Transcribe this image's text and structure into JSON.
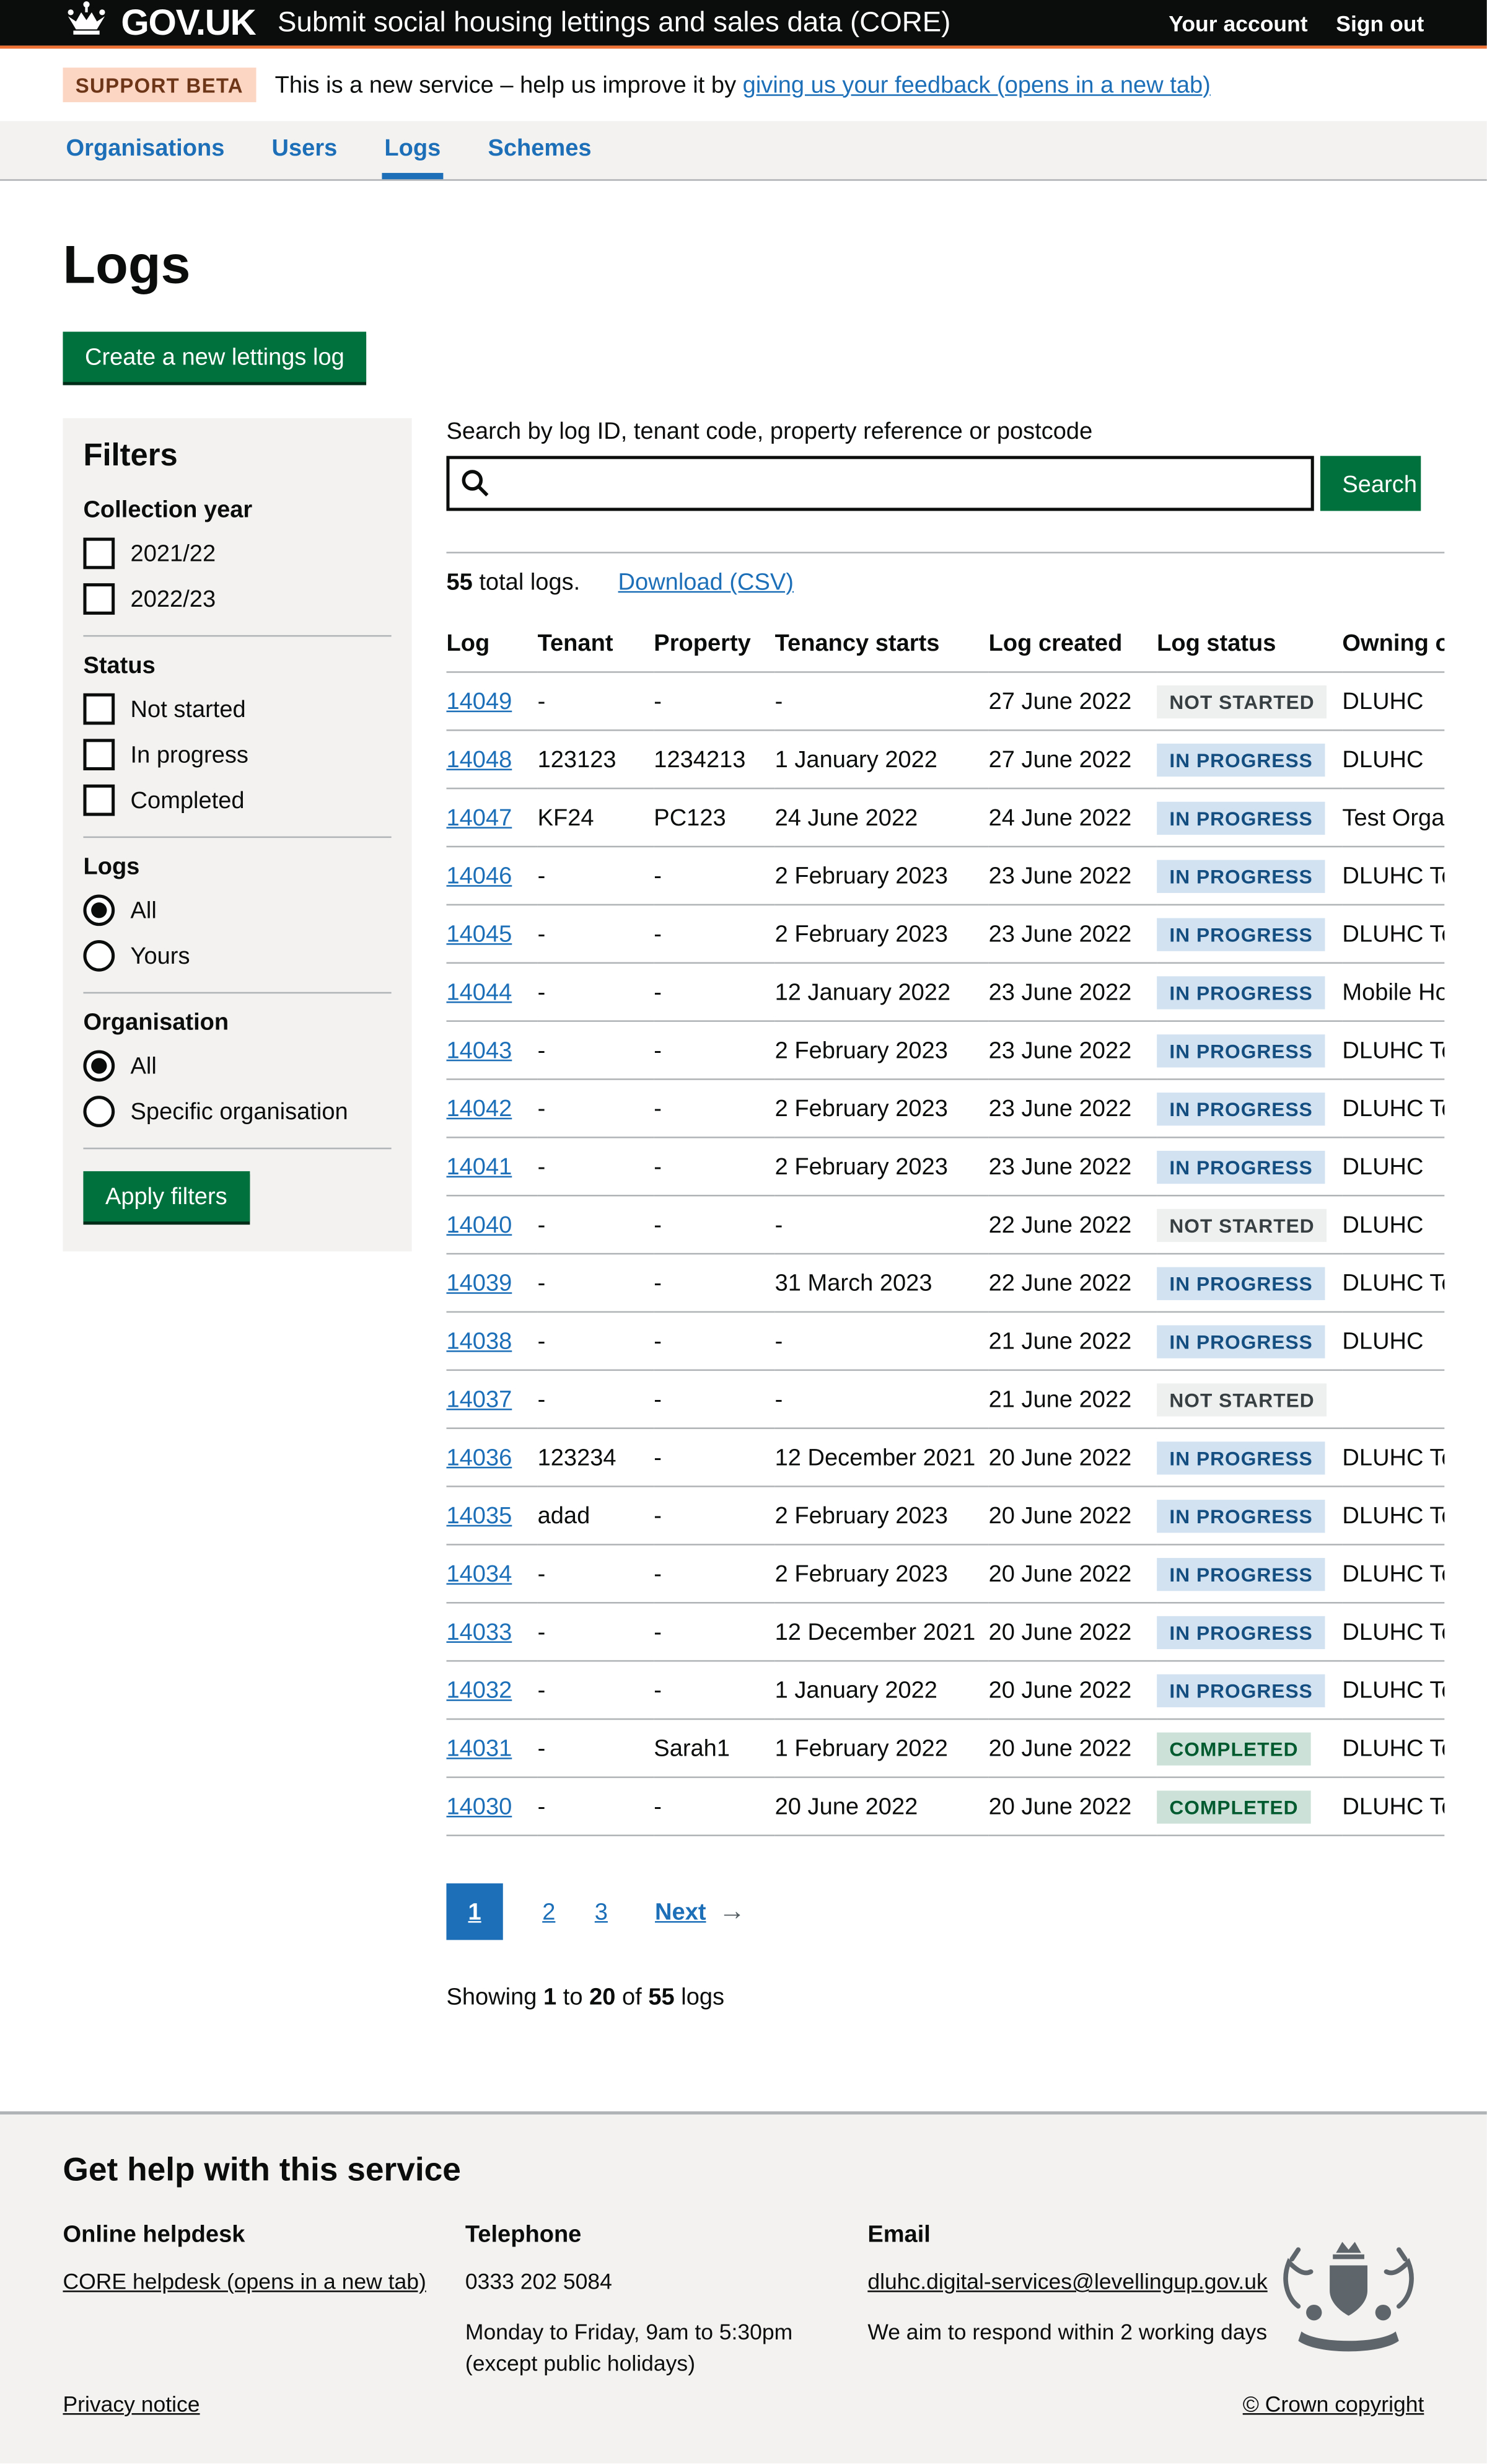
{
  "header": {
    "logo": "GOV.UK",
    "service_name": "Submit social housing lettings and sales data (CORE)",
    "account_link": "Your account",
    "signout_link": "Sign out"
  },
  "phase_banner": {
    "tag": "SUPPORT BETA",
    "message": "This is a new service – help us improve it by ",
    "feedback_link": "giving us your feedback (opens in a new tab)"
  },
  "nav": {
    "organisations": "Organisations",
    "users": "Users",
    "logs": "Logs",
    "schemes": "Schemes"
  },
  "page": {
    "title": "Logs",
    "create_button": "Create a new lettings log"
  },
  "filters": {
    "title": "Filters",
    "collection_year": {
      "label": "Collection year",
      "options": [
        {
          "label": "2021/22",
          "checked": false
        },
        {
          "label": "2022/23",
          "checked": false
        }
      ]
    },
    "status": {
      "label": "Status",
      "options": [
        {
          "label": "Not started",
          "checked": false
        },
        {
          "label": "In progress",
          "checked": false
        },
        {
          "label": "Completed",
          "checked": false
        }
      ]
    },
    "logs": {
      "label": "Logs",
      "options": [
        {
          "label": "All",
          "selected": true
        },
        {
          "label": "Yours",
          "selected": false
        }
      ]
    },
    "organisation": {
      "label": "Organisation",
      "options": [
        {
          "label": "All",
          "selected": true
        },
        {
          "label": "Specific organisation",
          "selected": false
        }
      ]
    },
    "apply_button": "Apply filters"
  },
  "search": {
    "label": "Search by log ID, tenant code, property reference or postcode",
    "value": "",
    "button": "Search"
  },
  "results": {
    "count": "55",
    "count_suffix": " total logs.",
    "download_link": "Download (CSV)"
  },
  "table": {
    "headers": [
      "Log",
      "Tenant",
      "Property",
      "Tenancy starts",
      "Log created",
      "Log status",
      "Owning organisation"
    ],
    "rows": [
      {
        "log": "14049",
        "tenant": "-",
        "property": "-",
        "tenancy": "-",
        "created": "27 June 2022",
        "status": "NOT STARTED",
        "status_type": "not-started",
        "owning": "DLUHC"
      },
      {
        "log": "14048",
        "tenant": "123123",
        "property": "1234213",
        "tenancy": "1 January 2022",
        "created": "27 June 2022",
        "status": "IN PROGRESS",
        "status_type": "in-progress",
        "owning": "DLUHC"
      },
      {
        "log": "14047",
        "tenant": "KF24",
        "property": "PC123",
        "tenancy": "24 June 2022",
        "created": "24 June 2022",
        "status": "IN PROGRESS",
        "status_type": "in-progress",
        "owning": "Test Organ"
      },
      {
        "log": "14046",
        "tenant": "-",
        "property": "-",
        "tenancy": "2 February 2023",
        "created": "23 June 2022",
        "status": "IN PROGRESS",
        "status_type": "in-progress",
        "owning": "DLUHC Tes"
      },
      {
        "log": "14045",
        "tenant": "-",
        "property": "-",
        "tenancy": "2 February 2023",
        "created": "23 June 2022",
        "status": "IN PROGRESS",
        "status_type": "in-progress",
        "owning": "DLUHC Tes"
      },
      {
        "log": "14044",
        "tenant": "-",
        "property": "-",
        "tenancy": "12 January 2022",
        "created": "23 June 2022",
        "status": "IN PROGRESS",
        "status_type": "in-progress",
        "owning": "Mobile Hou"
      },
      {
        "log": "14043",
        "tenant": "-",
        "property": "-",
        "tenancy": "2 February 2023",
        "created": "23 June 2022",
        "status": "IN PROGRESS",
        "status_type": "in-progress",
        "owning": "DLUHC Tes"
      },
      {
        "log": "14042",
        "tenant": "-",
        "property": "-",
        "tenancy": "2 February 2023",
        "created": "23 June 2022",
        "status": "IN PROGRESS",
        "status_type": "in-progress",
        "owning": "DLUHC Tes"
      },
      {
        "log": "14041",
        "tenant": "-",
        "property": "-",
        "tenancy": "2 February 2023",
        "created": "23 June 2022",
        "status": "IN PROGRESS",
        "status_type": "in-progress",
        "owning": "DLUHC"
      },
      {
        "log": "14040",
        "tenant": "-",
        "property": "-",
        "tenancy": "-",
        "created": "22 June 2022",
        "status": "NOT STARTED",
        "status_type": "not-started",
        "owning": "DLUHC"
      },
      {
        "log": "14039",
        "tenant": "-",
        "property": "-",
        "tenancy": "31 March 2023",
        "created": "22 June 2022",
        "status": "IN PROGRESS",
        "status_type": "in-progress",
        "owning": "DLUHC Tes"
      },
      {
        "log": "14038",
        "tenant": "-",
        "property": "-",
        "tenancy": "-",
        "created": "21 June 2022",
        "status": "IN PROGRESS",
        "status_type": "in-progress",
        "owning": "DLUHC"
      },
      {
        "log": "14037",
        "tenant": "-",
        "property": "-",
        "tenancy": "-",
        "created": "21 June 2022",
        "status": "NOT STARTED",
        "status_type": "not-started",
        "owning": ""
      },
      {
        "log": "14036",
        "tenant": "123234",
        "property": "-",
        "tenancy": "12 December 2021",
        "created": "20 June 2022",
        "status": "IN PROGRESS",
        "status_type": "in-progress",
        "owning": "DLUHC Tes"
      },
      {
        "log": "14035",
        "tenant": "adad",
        "property": "-",
        "tenancy": "2 February 2023",
        "created": "20 June 2022",
        "status": "IN PROGRESS",
        "status_type": "in-progress",
        "owning": "DLUHC Tes"
      },
      {
        "log": "14034",
        "tenant": "-",
        "property": "-",
        "tenancy": "2 February 2023",
        "created": "20 June 2022",
        "status": "IN PROGRESS",
        "status_type": "in-progress",
        "owning": "DLUHC Tes"
      },
      {
        "log": "14033",
        "tenant": "-",
        "property": "-",
        "tenancy": "12 December 2021",
        "created": "20 June 2022",
        "status": "IN PROGRESS",
        "status_type": "in-progress",
        "owning": "DLUHC Tes"
      },
      {
        "log": "14032",
        "tenant": "-",
        "property": "-",
        "tenancy": "1 January 2022",
        "created": "20 June 2022",
        "status": "IN PROGRESS",
        "status_type": "in-progress",
        "owning": "DLUHC Tes"
      },
      {
        "log": "14031",
        "tenant": "-",
        "property": "Sarah1",
        "tenancy": "1 February 2022",
        "created": "20 June 2022",
        "status": "COMPLETED",
        "status_type": "completed",
        "owning": "DLUHC Tes"
      },
      {
        "log": "14030",
        "tenant": "-",
        "property": "-",
        "tenancy": "20 June 2022",
        "created": "20 June 2022",
        "status": "COMPLETED",
        "status_type": "completed",
        "owning": "DLUHC Tes"
      }
    ]
  },
  "pagination": {
    "current": "1",
    "page2": "2",
    "page3": "3",
    "next": "Next",
    "arrow": "→"
  },
  "showing": {
    "prefix": "Showing ",
    "from": "1",
    "mid": " to ",
    "to": "20",
    "of": " of ",
    "total": "55",
    "suffix": " logs"
  },
  "footer": {
    "heading": "Get help with this service",
    "helpdesk": {
      "title": "Online helpdesk",
      "link": "CORE helpdesk (opens in a new tab)"
    },
    "telephone": {
      "title": "Telephone",
      "number": "0333 202 5084",
      "hours": "Monday to Friday, 9am to 5:30pm",
      "holidays": "(except public holidays)"
    },
    "email": {
      "title": "Email",
      "link": "dluhc.digital-services@levellingup.gov.uk",
      "note": "We aim to respond within 2 working days"
    },
    "privacy_link": "Privacy notice",
    "copyright_link": "© Crown copyright"
  },
  "colors": {
    "link_blue": "#1d70b8",
    "button_green": "#00703c",
    "header_black": "#0b0c0c",
    "header_orange": "#ee7135",
    "panel_grey": "#f3f2f1",
    "border_grey": "#b1b4b6",
    "tag_beta_bg": "#fcd6c3",
    "tag_beta_text": "#6e3619",
    "tag_not_started_bg": "#eef0ef",
    "tag_not_started_text": "#383f43",
    "tag_in_progress_bg": "#d2e2f1",
    "tag_in_progress_text": "#144e81",
    "tag_completed_bg": "#cce2d8",
    "tag_completed_text": "#005a30"
  }
}
